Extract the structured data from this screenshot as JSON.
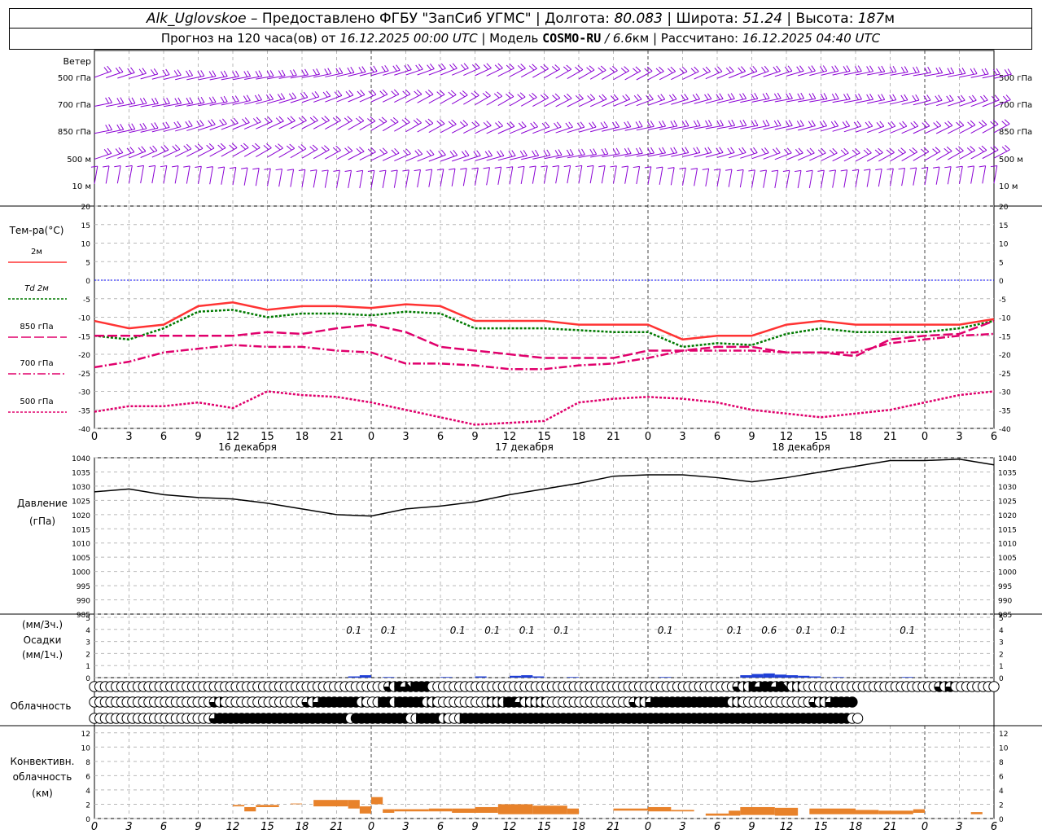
{
  "header": {
    "station": "Alk_Uglovskoe",
    "provided": "– Предоставлено ФГБУ \"ЗапСиб УГМС\" |",
    "lon_label": "Долгота:",
    "lon": "80.083",
    "lat_label": "| Широта:",
    "lat": "51.24",
    "alt_label": "| Высота:",
    "alt": "187",
    "alt_unit": "м",
    "forecast_label": "Прогноз на 120 часа(ов) от",
    "forecast_start": "16.12.2025 00:00 UTC",
    "model_label": "| Модель",
    "model": "COSMO-RU",
    "model_res": "/ 6.6",
    "model_res_unit": "км",
    "calc_label": "| Рассчитано:",
    "calc_time": "16.12.2025 04:40 UTC"
  },
  "colors": {
    "t2m": "#ff3333",
    "td2m": "#007a00",
    "t850": "#e0006c",
    "t700": "#e0006c",
    "t500": "#e0006c",
    "pressure": "#000000",
    "precip": "#1f3fd6",
    "conv": "#e8822a",
    "wind": "#8a00d4",
    "zero_line": "#0000ff"
  },
  "chart_data": [
    {
      "type": "wind_barbs",
      "title": "Ветер",
      "levels": [
        "500 гПа",
        "700 гПа",
        "850 гПа",
        "500 м",
        "10 м"
      ]
    },
    {
      "type": "line",
      "ylabel": "Тем-ра(°C)",
      "ylim": [
        -40,
        20
      ],
      "yticks": [
        20,
        15,
        10,
        5,
        0,
        -5,
        -10,
        -15,
        -20,
        -25,
        -30,
        -35,
        -40
      ],
      "x_hours": [
        0,
        3,
        6,
        9,
        12,
        15,
        18,
        21,
        24,
        27,
        30,
        33,
        36,
        39,
        42,
        45,
        48,
        51,
        54,
        57,
        60,
        63,
        66,
        69,
        72,
        75,
        78
      ],
      "series": [
        {
          "name": "2м",
          "values": [
            -11,
            -13,
            -12,
            -7,
            -6,
            -8,
            -7,
            -7,
            -7.5,
            -6.5,
            -7,
            -11,
            -11,
            -11,
            -12,
            -12,
            -12,
            -16,
            -15,
            -15,
            -12,
            -11,
            -12,
            -12,
            -12,
            -12,
            -10.5
          ]
        },
        {
          "name": "Td 2м",
          "values": [
            -15,
            -16,
            -13,
            -8.5,
            -8,
            -10,
            -9,
            -9,
            -9.5,
            -8.5,
            -9,
            -13,
            -13,
            -13,
            -13.5,
            -14,
            -14,
            -18,
            -17,
            -17.5,
            -14.5,
            -13,
            -14,
            -14,
            -14,
            -13,
            -11
          ]
        },
        {
          "name": "850 гПа",
          "values": [
            -15,
            -15,
            -15,
            -15,
            -15,
            -14,
            -14.5,
            -13,
            -12,
            -14,
            -18,
            -19,
            -20,
            -21,
            -21,
            -21,
            -19,
            -19,
            -18,
            -18,
            -19.5,
            -19.5,
            -20.5,
            -16,
            -15,
            -14.5,
            -11
          ]
        },
        {
          "name": "700 гПа",
          "values": [
            -23.5,
            -22,
            -19.5,
            -18.5,
            -17.5,
            -18,
            -18,
            -19,
            -19.5,
            -22.5,
            -22.5,
            -23,
            -24,
            -24,
            -23,
            -22.5,
            -21,
            -19,
            -19,
            -19,
            -19.5,
            -19.5,
            -19.5,
            -17,
            -16,
            -15,
            -14.5
          ]
        },
        {
          "name": "500 гПа",
          "values": [
            -35.5,
            -34,
            -34,
            -33,
            -34.5,
            -30,
            -31,
            -31.5,
            -33,
            -35,
            -37,
            -39,
            -38.5,
            -38,
            -33,
            -32,
            -31.5,
            -32,
            -33,
            -35,
            -36,
            -37,
            -36,
            -35,
            -33,
            -31,
            -30
          ]
        }
      ],
      "x_tick_labels": [
        "0",
        "3",
        "6",
        "9",
        "12",
        "15",
        "18",
        "21",
        "0",
        "3",
        "6",
        "9",
        "12",
        "15",
        "18",
        "21",
        "0",
        "3",
        "6",
        "9",
        "12",
        "15",
        "18",
        "21",
        "0",
        "3",
        "6"
      ],
      "day_labels": [
        "16 декабря",
        "17 декабря",
        "18 декабря"
      ]
    },
    {
      "type": "line",
      "ylabel": "Давление",
      "yunit": "(гПа)",
      "ylim": [
        985,
        1040
      ],
      "yticks": [
        1040,
        1035,
        1030,
        1025,
        1020,
        1015,
        1010,
        1005,
        1000,
        995,
        990,
        985
      ],
      "x_hours": [
        0,
        3,
        6,
        9,
        12,
        15,
        18,
        21,
        24,
        27,
        30,
        33,
        36,
        39,
        42,
        45,
        48,
        51,
        54,
        57,
        60,
        63,
        66,
        69,
        72,
        75,
        78
      ],
      "series": [
        {
          "name": "Давление",
          "values": [
            1028,
            1029,
            1027,
            1026,
            1025.5,
            1024,
            1022,
            1020,
            1019.5,
            1022,
            1023,
            1024.5,
            1027,
            1029,
            1031,
            1033.5,
            1034,
            1034,
            1033,
            1031.5,
            1033,
            1035,
            1037,
            1039,
            1039,
            1039.5,
            1037.5
          ]
        }
      ]
    },
    {
      "type": "bar",
      "ylabel_3h": "(мм/3ч.)",
      "ylabel": "Осадки",
      "ylabel_1h": "(мм/1ч.)",
      "ylim": [
        0,
        5
      ],
      "yticks": [
        5,
        4,
        3,
        2,
        1,
        0
      ],
      "annotations": [
        {
          "hour": 22.5,
          "text": "0.1"
        },
        {
          "hour": 25.5,
          "text": "0.1"
        },
        {
          "hour": 31.5,
          "text": "0.1"
        },
        {
          "hour": 34.5,
          "text": "0.1"
        },
        {
          "hour": 37.5,
          "text": "0.1"
        },
        {
          "hour": 40.5,
          "text": "0.1"
        },
        {
          "hour": 49.5,
          "text": "0.1"
        },
        {
          "hour": 55.5,
          "text": "0.1"
        },
        {
          "hour": 58.5,
          "text": "0.6"
        },
        {
          "hour": 61.5,
          "text": "0.1"
        },
        {
          "hour": 64.5,
          "text": "0.1"
        },
        {
          "hour": 70.5,
          "text": "0.1"
        }
      ],
      "bars": [
        {
          "hour": 22,
          "value": 0.1
        },
        {
          "hour": 23,
          "value": 0.2
        },
        {
          "hour": 25,
          "value": 0.05
        },
        {
          "hour": 30,
          "value": 0.05
        },
        {
          "hour": 33,
          "value": 0.1
        },
        {
          "hour": 36,
          "value": 0.15
        },
        {
          "hour": 37,
          "value": 0.2
        },
        {
          "hour": 38,
          "value": 0.1
        },
        {
          "hour": 41,
          "value": 0.05
        },
        {
          "hour": 49,
          "value": 0.05
        },
        {
          "hour": 56,
          "value": 0.2
        },
        {
          "hour": 57,
          "value": 0.3
        },
        {
          "hour": 58,
          "value": 0.35
        },
        {
          "hour": 59,
          "value": 0.25
        },
        {
          "hour": 60,
          "value": 0.2
        },
        {
          "hour": 61,
          "value": 0.15
        },
        {
          "hour": 62,
          "value": 0.1
        },
        {
          "hour": 64,
          "value": 0.05
        },
        {
          "hour": 70,
          "value": 0.05
        }
      ]
    },
    {
      "type": "heatmap",
      "title": "Облачность",
      "rows": 3,
      "cover_eighths": [
        [
          0,
          0,
          0,
          0,
          0,
          0,
          0,
          0,
          0,
          0,
          0,
          0,
          0,
          0,
          0,
          0,
          0,
          0,
          0,
          0,
          0,
          0,
          0,
          0,
          0,
          0,
          0,
          0,
          0,
          0,
          0,
          0,
          0,
          0,
          0,
          0,
          0,
          0,
          0,
          0,
          0,
          0,
          0,
          0,
          0,
          0,
          0,
          0,
          0,
          0,
          0,
          0,
          0,
          0,
          6,
          4,
          8,
          6,
          7,
          8,
          8,
          8,
          0,
          0,
          0,
          0,
          0,
          0,
          0,
          0,
          0,
          0,
          0,
          0,
          0,
          0,
          0,
          0,
          0,
          0,
          0,
          0,
          0,
          0,
          0,
          0,
          0,
          0,
          0,
          0,
          0,
          0,
          0,
          0,
          0,
          0,
          0,
          0,
          0,
          0,
          0,
          0,
          0,
          0,
          0,
          0,
          0,
          0,
          0,
          0,
          0,
          0,
          0,
          0,
          0,
          0,
          0,
          0,
          6,
          4,
          4,
          8,
          6,
          8,
          8,
          6,
          8,
          7,
          4,
          4,
          0,
          0,
          0,
          0,
          0,
          0,
          0,
          0,
          0,
          0,
          0,
          0,
          0,
          0,
          0,
          0,
          0,
          0,
          0,
          0,
          0,
          0,
          0,
          0,
          0,
          6,
          4,
          6,
          0,
          0,
          0,
          0,
          0,
          0,
          0,
          0
        ],
        [
          0,
          0,
          0,
          0,
          0,
          0,
          0,
          0,
          0,
          0,
          0,
          0,
          0,
          0,
          0,
          0,
          0,
          0,
          0,
          0,
          0,
          0,
          6,
          4,
          0,
          0,
          0,
          0,
          0,
          0,
          0,
          0,
          0,
          0,
          0,
          0,
          0,
          0,
          0,
          6,
          4,
          6,
          8,
          8,
          8,
          8,
          8,
          8,
          8,
          4,
          0,
          0,
          4,
          8,
          8,
          4,
          8,
          8,
          8,
          8,
          8,
          4,
          4,
          0,
          0,
          0,
          0,
          0,
          0,
          0,
          0,
          0,
          4,
          4,
          4,
          4,
          8,
          8,
          6,
          4,
          4,
          4,
          4,
          0,
          0,
          0,
          0,
          0,
          0,
          0,
          0,
          0,
          0,
          0,
          0,
          0,
          0,
          0,
          0,
          6,
          4,
          4,
          6,
          8,
          8,
          8,
          8,
          8,
          8,
          8,
          8,
          8,
          8,
          8,
          8,
          8,
          8,
          4,
          4,
          0,
          0,
          0,
          0,
          0,
          0,
          0,
          0,
          0,
          0,
          0,
          0,
          0,
          6,
          4,
          4,
          6,
          8,
          8,
          8,
          8
        ],
        [
          0,
          0,
          0,
          0,
          0,
          0,
          0,
          0,
          0,
          0,
          0,
          0,
          0,
          0,
          0,
          0,
          0,
          0,
          0,
          0,
          0,
          0,
          6,
          8,
          8,
          8,
          8,
          8,
          8,
          8,
          8,
          8,
          8,
          8,
          8,
          8,
          8,
          8,
          8,
          8,
          8,
          8,
          8,
          8,
          8,
          8,
          8,
          0,
          8,
          8,
          8,
          8,
          8,
          8,
          8,
          8,
          8,
          8,
          0,
          4,
          8,
          8,
          8,
          8,
          4,
          0,
          0,
          4,
          8,
          8,
          8,
          8,
          8,
          8,
          8,
          8,
          8,
          8,
          8,
          8,
          8,
          8,
          8,
          8,
          8,
          8,
          8,
          8,
          8,
          8,
          8,
          8,
          8,
          8,
          8,
          8,
          8,
          8,
          8,
          8,
          8,
          8,
          8,
          8,
          8,
          8,
          8,
          8,
          8,
          8,
          8,
          8,
          8,
          8,
          8,
          8,
          8,
          8,
          8,
          8,
          8,
          8,
          8,
          8,
          8,
          8,
          8,
          8,
          8,
          8,
          8,
          8,
          8,
          8,
          8,
          8,
          8,
          8,
          8,
          0,
          0
        ]
      ]
    },
    {
      "type": "bar",
      "ylabel": "Конвективн. облачность",
      "yunit": "(км)",
      "ylim": [
        0,
        13
      ],
      "yticks": [
        12,
        10,
        8,
        6,
        4,
        2,
        0
      ],
      "segments": [
        {
          "h0": 12,
          "h1": 13,
          "lo": 1.7,
          "hi": 1.9
        },
        {
          "h0": 13,
          "h1": 14,
          "lo": 1.0,
          "hi": 1.6
        },
        {
          "h0": 14,
          "h1": 16,
          "lo": 1.6,
          "hi": 1.9
        },
        {
          "h0": 17,
          "h1": 18,
          "lo": 2.0,
          "hi": 2.1
        },
        {
          "h0": 19,
          "h1": 22,
          "lo": 1.7,
          "hi": 2.6
        },
        {
          "h0": 22,
          "h1": 23,
          "lo": 1.4,
          "hi": 2.6
        },
        {
          "h0": 23,
          "h1": 24,
          "lo": 0.7,
          "hi": 1.7
        },
        {
          "h0": 24,
          "h1": 25,
          "lo": 2.0,
          "hi": 3.0
        },
        {
          "h0": 25,
          "h1": 26,
          "lo": 0.8,
          "hi": 1.3
        },
        {
          "h0": 26,
          "h1": 29,
          "lo": 1.0,
          "hi": 1.3
        },
        {
          "h0": 29,
          "h1": 31,
          "lo": 1.0,
          "hi": 1.4
        },
        {
          "h0": 31,
          "h1": 33,
          "lo": 0.8,
          "hi": 1.4
        },
        {
          "h0": 33,
          "h1": 35,
          "lo": 0.8,
          "hi": 1.6
        },
        {
          "h0": 35,
          "h1": 38,
          "lo": 0.6,
          "hi": 2.0
        },
        {
          "h0": 38,
          "h1": 41,
          "lo": 0.6,
          "hi": 1.8
        },
        {
          "h0": 41,
          "h1": 42,
          "lo": 0.6,
          "hi": 1.4
        },
        {
          "h0": 45,
          "h1": 48,
          "lo": 1.1,
          "hi": 1.4
        },
        {
          "h0": 48,
          "h1": 50,
          "lo": 1.0,
          "hi": 1.6
        },
        {
          "h0": 50,
          "h1": 52,
          "lo": 1.0,
          "hi": 1.2
        },
        {
          "h0": 53,
          "h1": 55,
          "lo": 0.4,
          "hi": 0.7
        },
        {
          "h0": 55,
          "h1": 56,
          "lo": 0.4,
          "hi": 1.1
        },
        {
          "h0": 56,
          "h1": 59,
          "lo": 0.5,
          "hi": 1.6
        },
        {
          "h0": 59,
          "h1": 61,
          "lo": 0.4,
          "hi": 1.5
        },
        {
          "h0": 62,
          "h1": 63,
          "lo": 0.6,
          "hi": 1.4
        },
        {
          "h0": 63,
          "h1": 66,
          "lo": 0.6,
          "hi": 1.4
        },
        {
          "h0": 66,
          "h1": 68,
          "lo": 0.6,
          "hi": 1.2
        },
        {
          "h0": 68,
          "h1": 71,
          "lo": 0.6,
          "hi": 1.1
        },
        {
          "h0": 71,
          "h1": 72,
          "lo": 0.8,
          "hi": 1.3
        },
        {
          "h0": 76,
          "h1": 77,
          "lo": 0.6,
          "hi": 0.9
        }
      ]
    }
  ]
}
